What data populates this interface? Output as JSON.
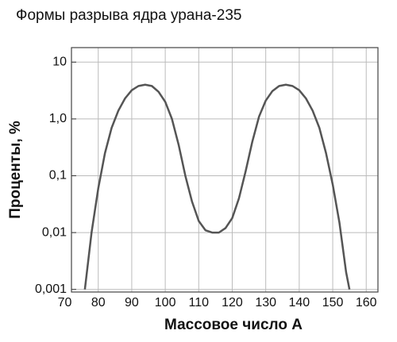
{
  "chart_data": {
    "type": "line",
    "title": "Формы разрыва ядра урана-235",
    "xlabel": "Массовое число A",
    "ylabel": "Проценты, %",
    "x": [
      76,
      78,
      80,
      82,
      84,
      86,
      88,
      90,
      92,
      94,
      96,
      98,
      100,
      102,
      104,
      106,
      108,
      110,
      112,
      114,
      116,
      118,
      120,
      122,
      124,
      126,
      128,
      130,
      132,
      134,
      136,
      138,
      140,
      142,
      144,
      146,
      148,
      150,
      152,
      154,
      155
    ],
    "series": [
      {
        "color": "#555555",
        "values": [
          0.001,
          0.01,
          0.06,
          0.25,
          0.7,
          1.4,
          2.3,
          3.2,
          3.8,
          4.0,
          3.8,
          3.0,
          2.0,
          1.0,
          0.35,
          0.1,
          0.035,
          0.016,
          0.011,
          0.01,
          0.01,
          0.012,
          0.018,
          0.04,
          0.12,
          0.4,
          1.1,
          2.1,
          3.1,
          3.8,
          4.0,
          3.8,
          3.2,
          2.3,
          1.4,
          0.7,
          0.25,
          0.07,
          0.015,
          0.002,
          0.001
        ]
      }
    ],
    "xlim": [
      72,
      163.5
    ],
    "xticks": [
      70,
      80,
      90,
      100,
      110,
      120,
      130,
      140,
      150,
      160
    ],
    "ylim": [
      0.0009,
      18
    ],
    "ylog": true,
    "yticks": [
      {
        "value": 0.001,
        "label": "0,001"
      },
      {
        "value": 0.01,
        "label": "0,01"
      },
      {
        "value": 0.1,
        "label": "0,1"
      },
      {
        "value": 1,
        "label": "1,0"
      },
      10
    ],
    "grid": true
  }
}
